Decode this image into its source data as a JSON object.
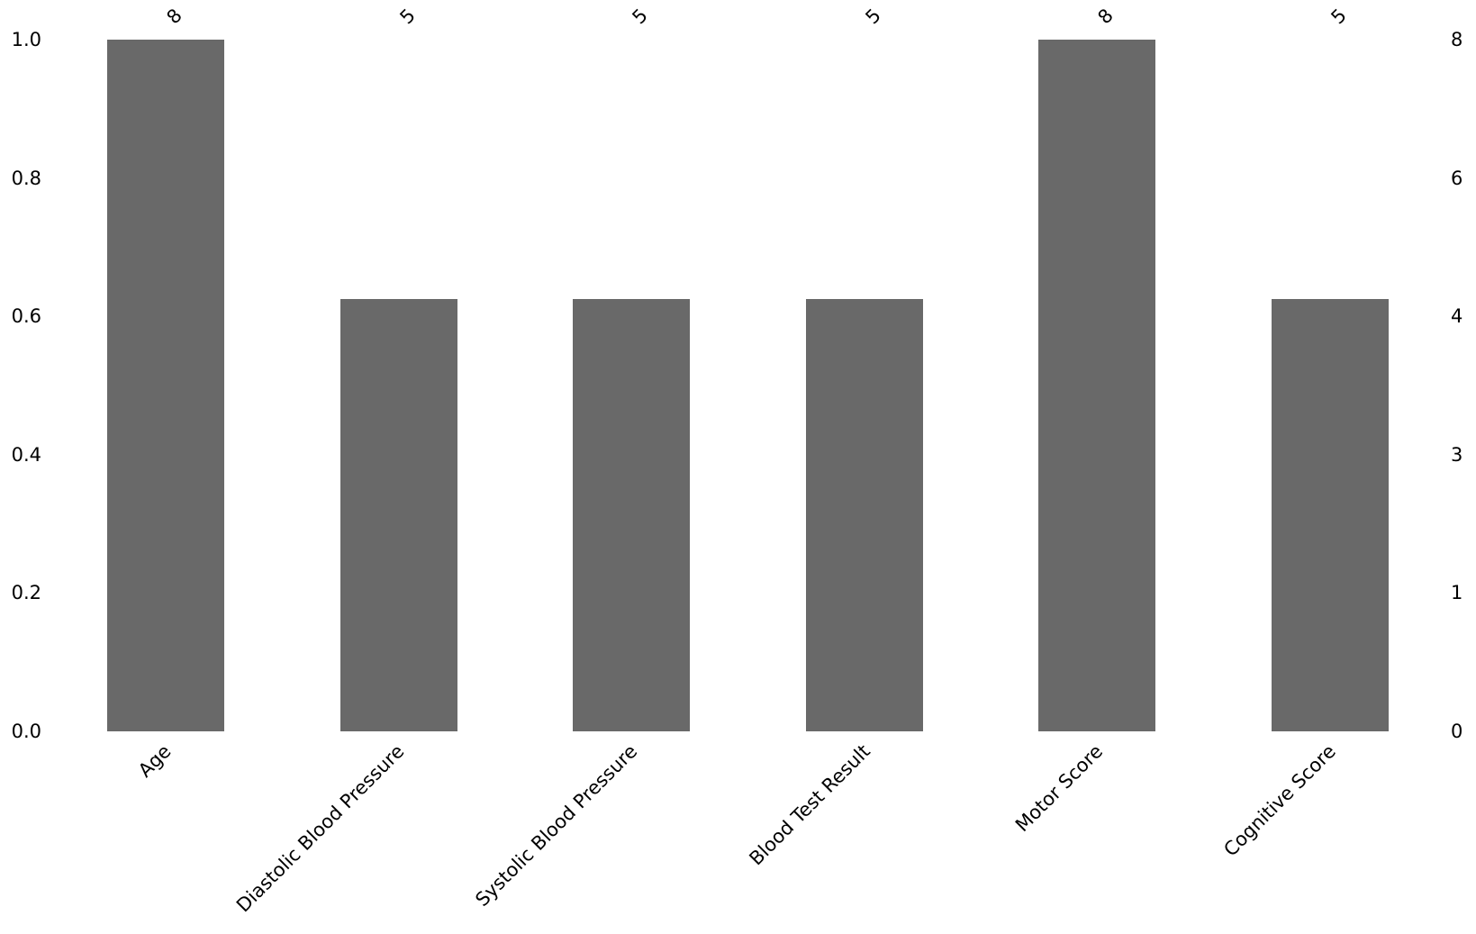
{
  "chart_data": {
    "type": "bar",
    "title": "",
    "xlabel": "",
    "ylabel": "",
    "categories": [
      "Age",
      "Diastolic Blood Pressure",
      "Systolic Blood Pressure",
      "Blood Test Result",
      "Motor Score",
      "Cognitive Score"
    ],
    "values": [
      8,
      5,
      5,
      5,
      8,
      5
    ],
    "bar_value_labels": [
      "8",
      "5",
      "5",
      "5",
      "8",
      "5"
    ],
    "normalized_heights": [
      1.0,
      0.625,
      0.625,
      0.625,
      1.0,
      0.625
    ],
    "left_axis": {
      "tick_labels": [
        "1.0",
        "0.8",
        "0.6",
        "0.4",
        "0.2",
        "0.0"
      ],
      "range": [
        0.0,
        1.0
      ]
    },
    "right_axis": {
      "tick_labels": [
        "8",
        "6",
        "4",
        "3",
        "1",
        "0"
      ],
      "max_value": 8
    },
    "grid": false,
    "legend": "none",
    "label_rotation_deg": 45,
    "bar_color": "#696969",
    "text_color": "#000000",
    "background_color": "#ffffff"
  }
}
